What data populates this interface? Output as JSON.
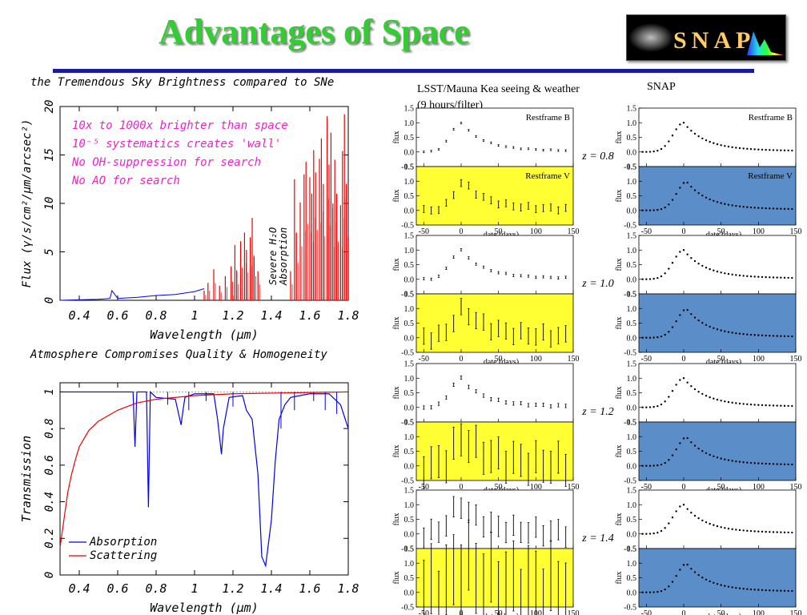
{
  "slide": {
    "title": "Advantages of Space",
    "logo_text": "SNAP",
    "colors": {
      "title": "#33cc33",
      "rule": "#1a1aa0",
      "yellow": "#ffff33",
      "blue": "#5b8ec9"
    }
  },
  "chart_data": [
    {
      "type": "line",
      "title": "the Tremendous Sky Brightness compared to SNe",
      "xlabel": "Wavelength (μm)",
      "ylabel": "Flux (γ/s/cm²/μm/arcsec²)",
      "xlim": [
        0.3,
        1.8
      ],
      "ylim": [
        0,
        20
      ],
      "xticks": [
        "0.4",
        "0.6",
        "0.8",
        "1",
        "1.2",
        "1.4",
        "1.6",
        "1.8"
      ],
      "yticks": [
        "0",
        "5",
        "10",
        "15",
        "20"
      ],
      "annotations": [
        "10x to 1000x brighter than space",
        "10⁻⁵ systematics creates 'wall'",
        "No OH-suppression for search",
        "No AO for search"
      ],
      "band_label_1": "Severe H₂O",
      "band_label_2": "Absorption",
      "series": [
        {
          "color": "#0000ee",
          "x": [
            0.3,
            0.5,
            0.56,
            0.57,
            0.6,
            0.7,
            0.8,
            0.9,
            1.0,
            1.05
          ],
          "y": [
            0,
            0.1,
            0.2,
            1.0,
            0.2,
            0.3,
            0.5,
            0.6,
            0.9,
            1.2
          ]
        },
        {
          "color": "#ee0000",
          "spikes": [
            [
              1.05,
              1
            ],
            [
              1.07,
              1.8
            ],
            [
              1.1,
              3.2
            ],
            [
              1.13,
              1.5
            ],
            [
              1.16,
              2.5
            ],
            [
              1.19,
              3.5
            ],
            [
              1.21,
              5.7
            ],
            [
              1.22,
              3
            ],
            [
              1.24,
              6.1
            ],
            [
              1.26,
              7
            ],
            [
              1.27,
              5.2
            ],
            [
              1.29,
              6.5
            ],
            [
              1.3,
              8.5
            ],
            [
              1.31,
              4.5
            ],
            [
              1.33,
              3
            ],
            [
              1.5,
              3
            ],
            [
              1.52,
              12.5
            ],
            [
              1.53,
              7
            ],
            [
              1.55,
              10.1
            ],
            [
              1.57,
              13
            ],
            [
              1.58,
              14.3
            ],
            [
              1.6,
              12.7
            ],
            [
              1.61,
              11
            ],
            [
              1.62,
              15.5
            ],
            [
              1.63,
              13.2
            ],
            [
              1.65,
              14.6
            ],
            [
              1.66,
              16.7
            ],
            [
              1.67,
              12
            ],
            [
              1.69,
              19
            ],
            [
              1.7,
              14
            ],
            [
              1.71,
              17.3
            ],
            [
              1.72,
              10
            ],
            [
              1.73,
              14.5
            ],
            [
              1.74,
              11
            ],
            [
              1.76,
              9.8
            ],
            [
              1.77,
              15.4
            ],
            [
              1.78,
              19.2
            ],
            [
              1.79,
              12
            ]
          ]
        }
      ]
    },
    {
      "type": "line",
      "title": "Atmosphere Compromises Quality & Homogeneity",
      "xlabel": "Wavelength (μm)",
      "ylabel": "Transmission",
      "xlim": [
        0.3,
        1.8
      ],
      "ylim": [
        0,
        1.05
      ],
      "xticks": [
        "0.4",
        "0.6",
        "0.8",
        "1",
        "1.2",
        "1.4",
        "1.6",
        "1.8"
      ],
      "yticks": [
        "0",
        "0.2",
        "0.4",
        "0.6",
        "0.8",
        "1"
      ],
      "legend": [
        "Absorption",
        "Scattering"
      ],
      "series": [
        {
          "name": "Absorption",
          "color": "#0000ee",
          "x": [
            0.3,
            0.68,
            0.69,
            0.7,
            0.75,
            0.76,
            0.77,
            0.8,
            0.9,
            0.93,
            0.94,
            0.95,
            1.0,
            1.1,
            1.12,
            1.14,
            1.15,
            1.18,
            1.25,
            1.27,
            1.3,
            1.33,
            1.35,
            1.37,
            1.4,
            1.42,
            1.44,
            1.47,
            1.5,
            1.6,
            1.7,
            1.76,
            1.8
          ],
          "y": [
            1,
            1,
            0.7,
            1,
            1,
            0.37,
            1,
            0.97,
            0.96,
            0.82,
            0.9,
            0.97,
            0.99,
            0.99,
            0.85,
            0.66,
            0.8,
            0.97,
            0.98,
            0.9,
            0.85,
            0.55,
            0.1,
            0.05,
            0.3,
            0.62,
            0.85,
            0.93,
            0.97,
            0.99,
            0.99,
            0.93,
            0.8
          ]
        },
        {
          "name": "Scattering",
          "color": "#ee0000",
          "x": [
            0.3,
            0.32,
            0.34,
            0.36,
            0.38,
            0.4,
            0.45,
            0.5,
            0.55,
            0.6,
            0.7,
            0.8,
            1.0,
            1.2,
            1.5,
            1.8
          ],
          "y": [
            0.15,
            0.3,
            0.45,
            0.55,
            0.63,
            0.7,
            0.79,
            0.84,
            0.87,
            0.9,
            0.94,
            0.96,
            0.98,
            0.99,
            0.995,
            1
          ]
        }
      ]
    },
    {
      "type": "scatter",
      "title_lsst": "LSST/Mauna Kea seeing & weather",
      "title_lsst_2": "(9 hours/filter)",
      "title_snap": "SNAP",
      "panel_b_label": "Restframe B",
      "panel_v_label": "Restframe V",
      "ylabel": "flux",
      "xlabel": "date (days)",
      "xlim": [
        -60,
        150
      ],
      "ylim": [
        -0.5,
        1.5
      ],
      "xticks": [
        "-50",
        "0",
        "50",
        "100",
        "150"
      ],
      "yticks": [
        "-0.5",
        "0.0",
        "0.5",
        "1.0",
        "1.5"
      ],
      "redshifts": [
        {
          "label": "z = 0.8",
          "lsst_err_B": 0.03,
          "lsst_err_V": 0.12
        },
        {
          "label": "z = 1.0",
          "lsst_err_B": 0.04,
          "lsst_err_V": 0.28
        },
        {
          "label": "z = 1.2",
          "lsst_err_B": 0.06,
          "lsst_err_V": 0.55
        },
        {
          "label": "z = 1.4",
          "lsst_err_B": 0.35,
          "lsst_err_V": 1.2
        }
      ],
      "lsst_dates": [
        -50,
        -40,
        -30,
        -20,
        -10,
        0,
        10,
        20,
        30,
        40,
        50,
        60,
        70,
        80,
        90,
        100,
        110,
        120,
        130,
        140
      ],
      "snap_dates": [
        -55,
        -50,
        -45,
        -40,
        -35,
        -30,
        -25,
        -20,
        -15,
        -10,
        -5,
        0,
        5,
        10,
        15,
        20,
        25,
        30,
        35,
        40,
        45,
        50,
        55,
        60,
        65,
        70,
        75,
        80,
        85,
        90,
        95,
        100,
        105,
        110,
        115,
        120,
        125,
        130,
        135,
        140,
        145
      ]
    }
  ]
}
